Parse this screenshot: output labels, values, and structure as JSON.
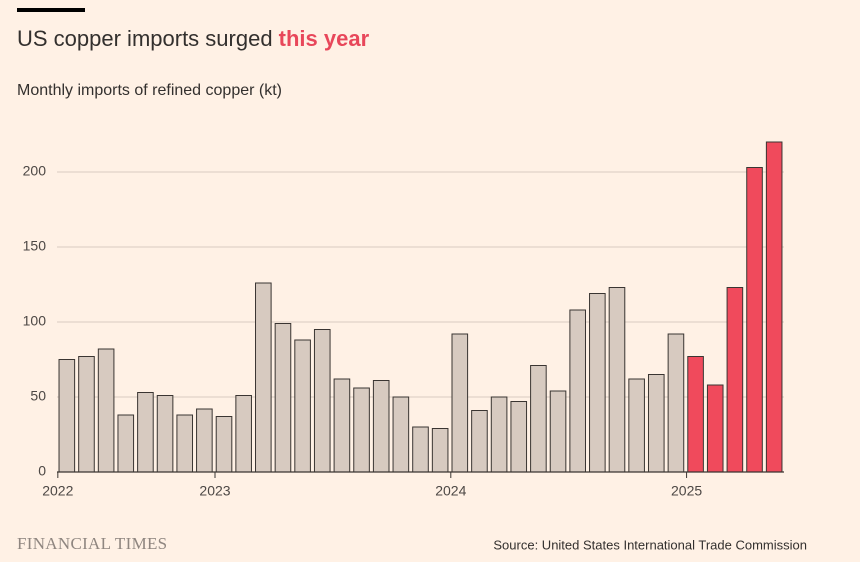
{
  "chart_data": {
    "type": "bar",
    "title": [
      "US copper imports surged ",
      "this year"
    ],
    "title_colors": [
      "#33302e",
      "#e8475a"
    ],
    "subtitle": "Monthly imports of refined copper (kt)",
    "categories": [
      "2022",
      null,
      null,
      null,
      null,
      null,
      null,
      null,
      "2023",
      null,
      null,
      null,
      null,
      null,
      null,
      null,
      null,
      null,
      null,
      null,
      "2024",
      null,
      null,
      null,
      null,
      null,
      null,
      null,
      null,
      null,
      null,
      null,
      "2025",
      null,
      null,
      null,
      null
    ],
    "values": [
      75,
      77,
      82,
      38,
      53,
      51,
      38,
      42,
      37,
      51,
      126,
      99,
      88,
      95,
      62,
      56,
      61,
      50,
      30,
      29,
      92,
      41,
      50,
      47,
      71,
      54,
      108,
      119,
      123,
      62,
      65,
      92,
      77,
      58,
      123,
      203,
      220
    ],
    "colors": [
      "#d7cac0",
      "#d7cac0",
      "#d7cac0",
      "#d7cac0",
      "#d7cac0",
      "#d7cac0",
      "#d7cac0",
      "#d7cac0",
      "#d7cac0",
      "#d7cac0",
      "#d7cac0",
      "#d7cac0",
      "#d7cac0",
      "#d7cac0",
      "#d7cac0",
      "#d7cac0",
      "#d7cac0",
      "#d7cac0",
      "#d7cac0",
      "#d7cac0",
      "#d7cac0",
      "#d7cac0",
      "#d7cac0",
      "#d7cac0",
      "#d7cac0",
      "#d7cac0",
      "#d7cac0",
      "#d7cac0",
      "#d7cac0",
      "#d7cac0",
      "#d7cac0",
      "#d7cac0",
      "#f04a5c",
      "#f04a5c",
      "#f04a5c",
      "#f04a5c",
      "#f04a5c"
    ],
    "ylim": [
      0,
      228
    ],
    "yticks": [
      0,
      50,
      100,
      150,
      200
    ],
    "grid": true,
    "source": "Source: United States International Trade Commission",
    "brand": "FINANCIAL TIMES"
  }
}
